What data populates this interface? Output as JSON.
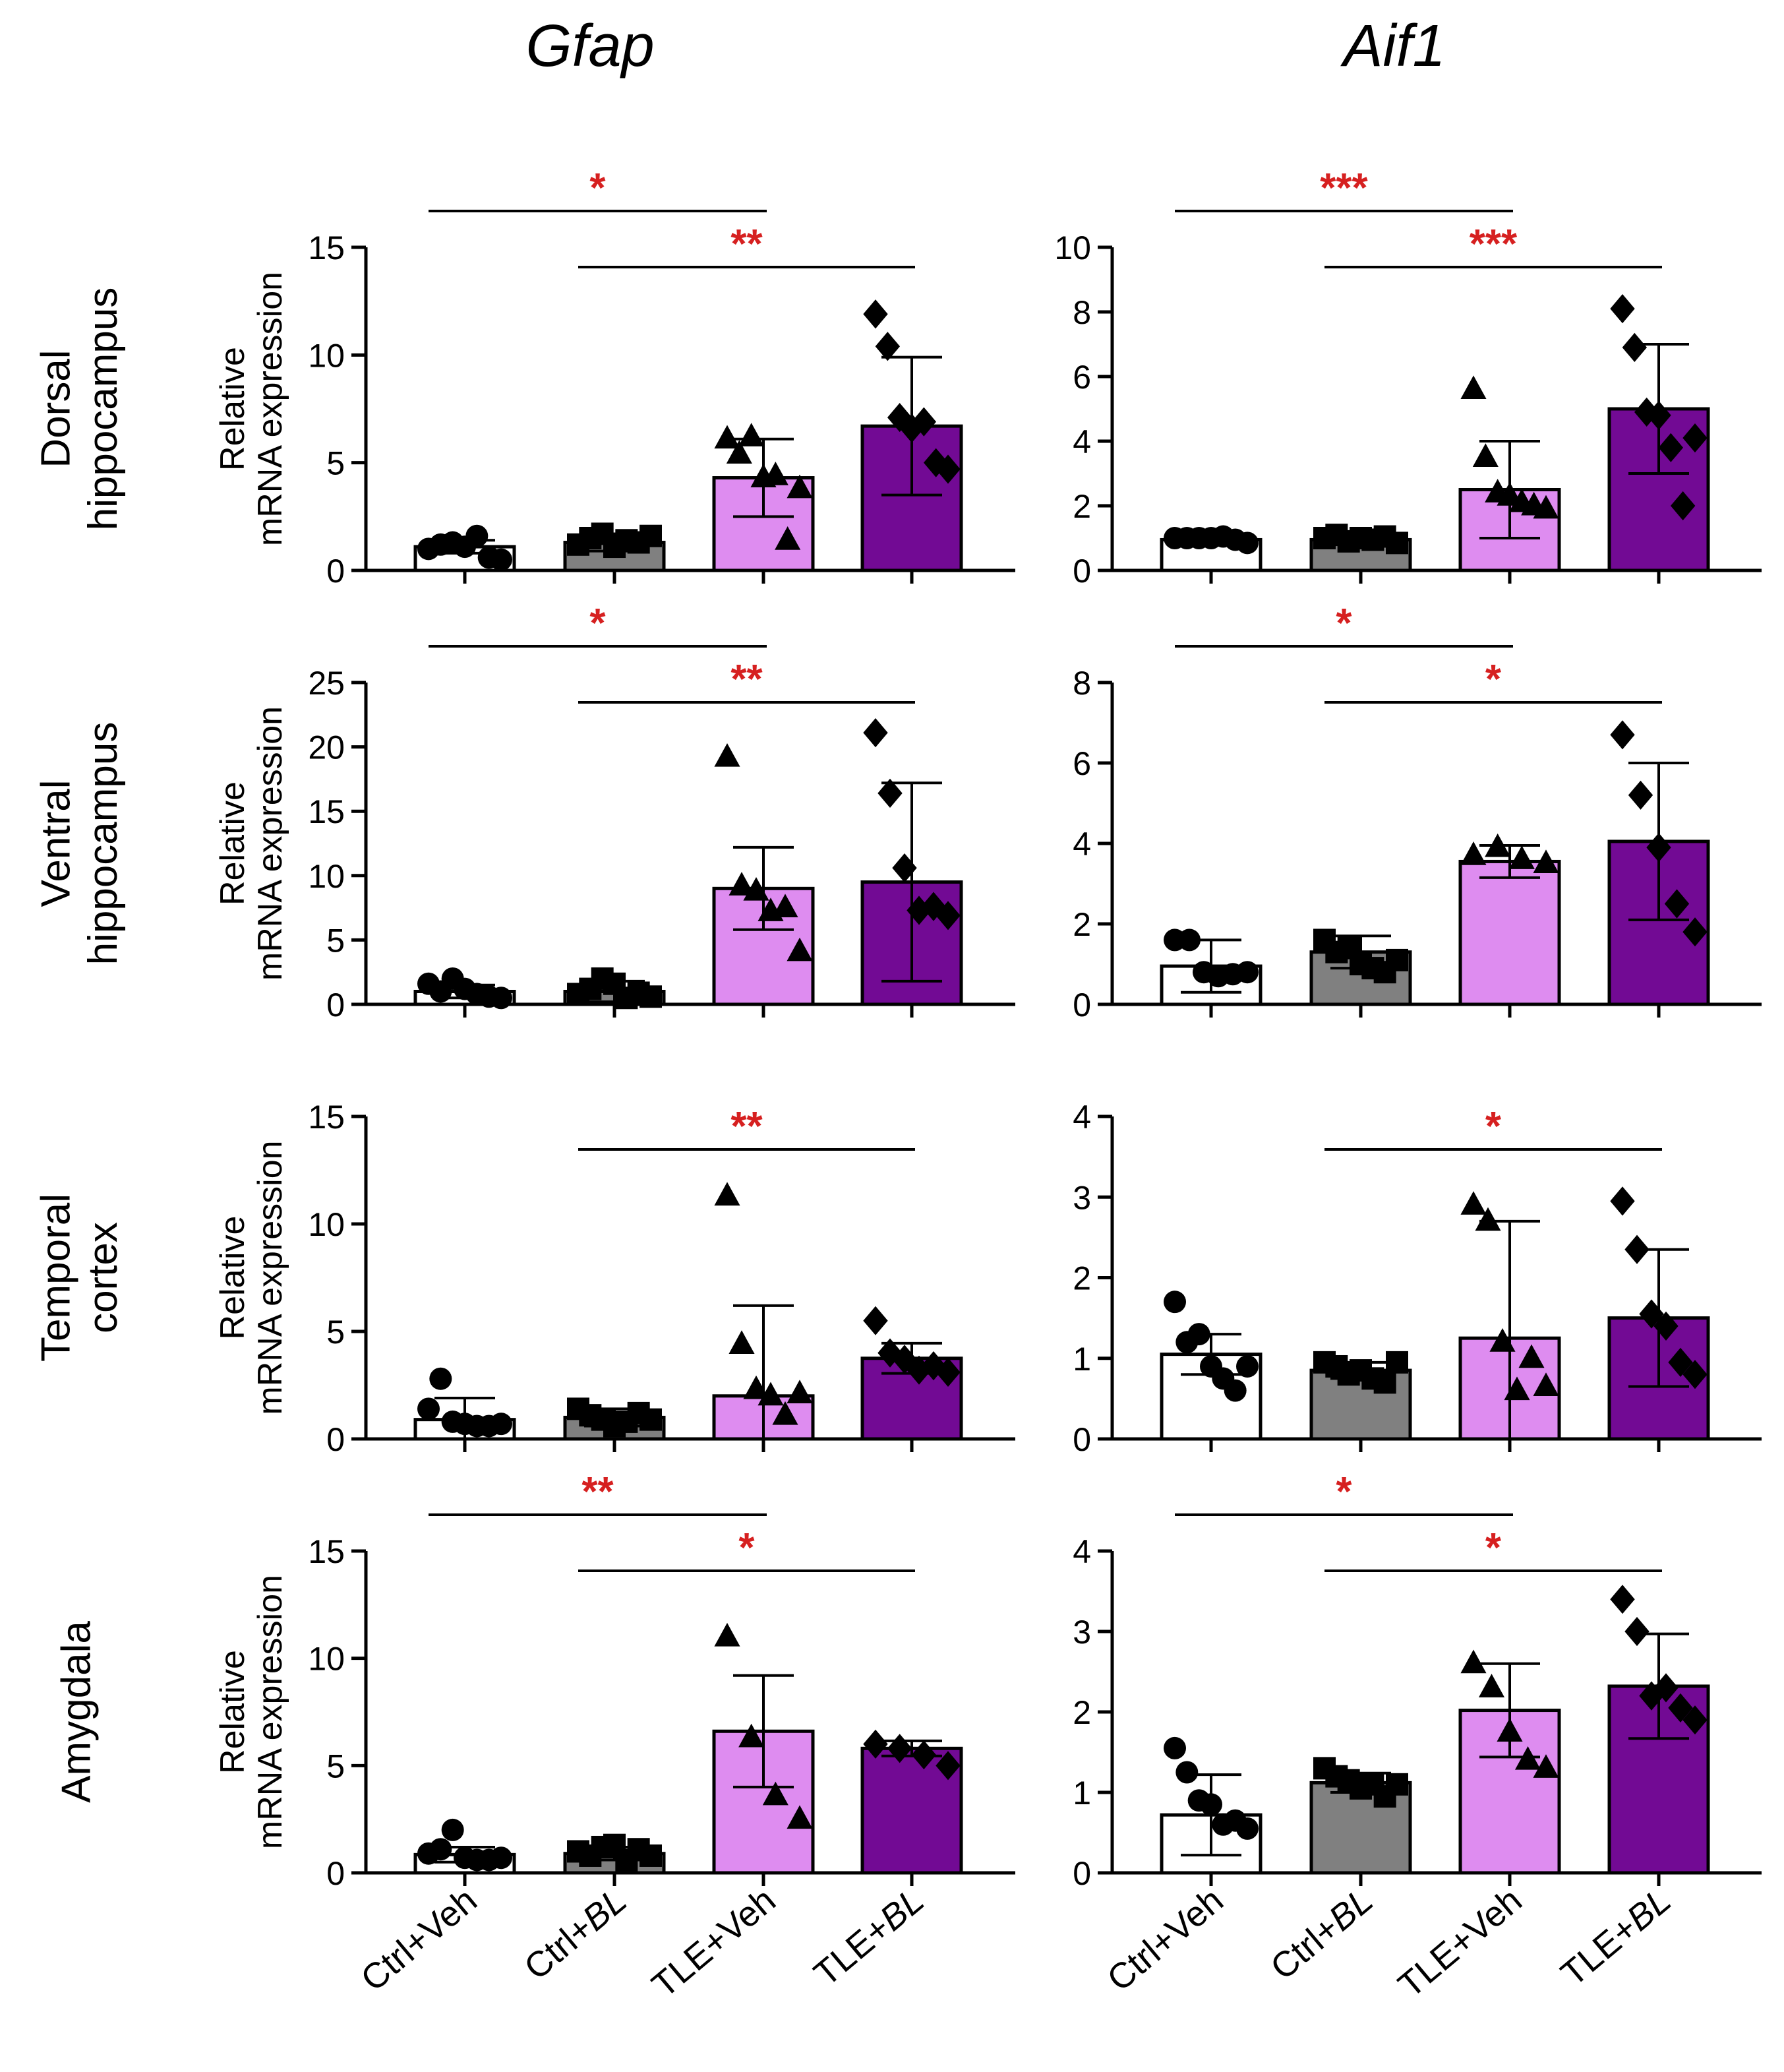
{
  "figure": {
    "columns": [
      {
        "title": "Gfap",
        "plain": "Gfap"
      },
      {
        "title": "Aif1",
        "plain": "Aif1"
      }
    ],
    "rows": [
      {
        "line1": "Dorsal",
        "line2": "hippocampus"
      },
      {
        "line1": "Ventral",
        "line2": "hippocampus"
      },
      {
        "line1": "Temporal",
        "line2": "cortex"
      },
      {
        "line1": "Amygdala",
        "line2": ""
      }
    ],
    "ylabel_line1": "Relative",
    "ylabel_line2": "mRNA expression",
    "groups": [
      {
        "prefix": "Ctrl+",
        "suffix": "Veh",
        "italic_suffix": false,
        "color": "#ffffff",
        "marker": "circle"
      },
      {
        "prefix": "Ctrl+",
        "suffix": "BL",
        "italic_suffix": true,
        "color": "#808080",
        "marker": "square"
      },
      {
        "prefix": "TLE+",
        "suffix": "Veh",
        "italic_suffix": false,
        "color": "#de8cf0",
        "marker": "triangle"
      },
      {
        "prefix": "TLE+",
        "suffix": "BL",
        "italic_suffix": true,
        "color": "#720a94",
        "marker": "diamond"
      }
    ]
  },
  "chart_data": [
    {
      "type": "bar",
      "row": 0,
      "col": 0,
      "title": "Gfap",
      "region": "Dorsal hippocampus",
      "ylabel": "Relative mRNA expression",
      "ylim": [
        0,
        15
      ],
      "yticks": [
        0,
        5,
        10,
        15
      ],
      "categories": [
        "Ctrl+Veh",
        "Ctrl+BL",
        "TLE+Veh",
        "TLE+BL"
      ],
      "values": [
        1.1,
        1.3,
        4.3,
        6.7
      ],
      "errors": [
        0.3,
        0.4,
        1.8,
        3.2
      ],
      "points": [
        [
          1.0,
          1.2,
          1.3,
          1.1,
          1.6,
          0.6,
          0.5
        ],
        [
          1.2,
          1.5,
          1.7,
          1.1,
          1.4,
          1.3,
          1.6
        ],
        [
          6.1,
          5.4,
          6.2,
          4.3,
          4.4,
          1.4,
          3.8
        ],
        [
          11.9,
          10.4,
          7.1,
          6.6,
          6.9,
          5.0,
          4.7
        ]
      ],
      "significance": [
        {
          "from": 0,
          "to": 2,
          "label": "*"
        },
        {
          "from": 1,
          "to": 3,
          "label": "**"
        }
      ]
    },
    {
      "type": "bar",
      "row": 0,
      "col": 1,
      "title": "Aif1",
      "region": "Dorsal hippocampus",
      "ylabel": "",
      "ylim": [
        0,
        10
      ],
      "yticks": [
        0,
        2,
        4,
        6,
        8,
        10
      ],
      "categories": [
        "Ctrl+Veh",
        "Ctrl+BL",
        "TLE+Veh",
        "TLE+BL"
      ],
      "values": [
        0.95,
        0.95,
        2.5,
        5.0
      ],
      "errors": [
        0.08,
        0.15,
        1.5,
        2.0
      ],
      "points": [
        [
          1.0,
          1.0,
          1.0,
          1.0,
          1.05,
          0.95,
          0.85
        ],
        [
          1.0,
          1.1,
          0.9,
          1.0,
          0.95,
          1.05,
          0.85
        ],
        [
          5.6,
          3.5,
          2.4,
          2.3,
          2.1,
          2.0,
          1.9
        ],
        [
          8.1,
          6.9,
          4.9,
          4.8,
          3.8,
          2.0,
          4.1
        ]
      ],
      "significance": [
        {
          "from": 0,
          "to": 2,
          "label": "***"
        },
        {
          "from": 1,
          "to": 3,
          "label": "***"
        }
      ]
    },
    {
      "type": "bar",
      "row": 1,
      "col": 0,
      "title": "Gfap",
      "region": "Ventral hippocampus",
      "ylabel": "Relative mRNA expression",
      "ylim": [
        0,
        25
      ],
      "yticks": [
        0,
        5,
        10,
        15,
        20,
        25
      ],
      "categories": [
        "Ctrl+Veh",
        "Ctrl+BL",
        "TLE+Veh",
        "TLE+BL"
      ],
      "values": [
        1.0,
        1.0,
        9.0,
        9.5
      ],
      "errors": [
        0.5,
        0.8,
        3.2,
        7.7
      ],
      "points": [
        [
          1.6,
          1.0,
          2.0,
          1.2,
          0.8,
          0.6,
          0.5
        ],
        [
          0.8,
          1.2,
          2.0,
          1.6,
          0.5,
          0.9,
          0.6
        ],
        [
          19.2,
          9.2,
          8.8,
          7.2,
          7.5,
          4.1
        ],
        [
          21.1,
          16.4,
          10.6,
          7.3,
          7.6,
          6.9
        ]
      ],
      "significance": [
        {
          "from": 0,
          "to": 2,
          "label": "*"
        },
        {
          "from": 1,
          "to": 3,
          "label": "**"
        }
      ]
    },
    {
      "type": "bar",
      "row": 1,
      "col": 1,
      "title": "Aif1",
      "region": "Ventral hippocampus",
      "ylabel": "",
      "ylim": [
        0,
        8
      ],
      "yticks": [
        0,
        2,
        4,
        6,
        8
      ],
      "categories": [
        "Ctrl+Veh",
        "Ctrl+BL",
        "TLE+Veh",
        "TLE+BL"
      ],
      "values": [
        0.95,
        1.3,
        3.55,
        4.05
      ],
      "errors": [
        0.65,
        0.4,
        0.4,
        1.95
      ],
      "points": [
        [
          1.6,
          1.6,
          0.8,
          0.7,
          0.75,
          0.8
        ],
        [
          1.6,
          1.3,
          1.4,
          1.0,
          0.9,
          0.8,
          1.1
        ],
        [
          3.7,
          3.9,
          3.6,
          3.5
        ],
        [
          6.7,
          5.2,
          3.9,
          2.5,
          1.8
        ]
      ],
      "significance": [
        {
          "from": 0,
          "to": 2,
          "label": "*"
        },
        {
          "from": 1,
          "to": 3,
          "label": "*"
        }
      ]
    },
    {
      "type": "bar",
      "row": 2,
      "col": 0,
      "title": "Gfap",
      "region": "Temporal cortex",
      "ylabel": "Relative mRNA expression",
      "ylim": [
        0,
        15
      ],
      "yticks": [
        0,
        5,
        10,
        15
      ],
      "categories": [
        "Ctrl+Veh",
        "Ctrl+BL",
        "TLE+Veh",
        "TLE+BL"
      ],
      "values": [
        0.9,
        1.0,
        2.0,
        3.75
      ],
      "errors": [
        1.0,
        0.4,
        4.2,
        0.7
      ],
      "points": [
        [
          1.4,
          2.8,
          0.8,
          0.7,
          0.6,
          0.6,
          0.7
        ],
        [
          1.4,
          1.1,
          0.9,
          0.6,
          0.8,
          1.2,
          0.9
        ],
        [
          11.3,
          4.4,
          2.3,
          2.0,
          1.1,
          2.1
        ],
        [
          5.5,
          4.0,
          3.7,
          3.2,
          3.4,
          3.1
        ]
      ],
      "significance": [
        {
          "from": 1,
          "to": 3,
          "label": "**"
        }
      ]
    },
    {
      "type": "bar",
      "row": 2,
      "col": 1,
      "title": "Aif1",
      "region": "Temporal cortex",
      "ylabel": "",
      "ylim": [
        0,
        4
      ],
      "yticks": [
        0,
        1,
        2,
        3,
        4
      ],
      "categories": [
        "Ctrl+Veh",
        "Ctrl+BL",
        "TLE+Veh",
        "TLE+BL"
      ],
      "values": [
        1.05,
        0.85,
        1.25,
        1.5
      ],
      "errors": [
        0.25,
        0.1,
        1.45,
        0.85
      ],
      "points": [
        [
          1.7,
          1.2,
          1.3,
          0.9,
          0.75,
          0.6,
          0.9
        ],
        [
          0.95,
          0.9,
          0.8,
          0.85,
          0.75,
          0.7,
          0.95
        ],
        [
          2.9,
          2.7,
          1.2,
          0.6,
          1.0,
          0.65
        ],
        [
          2.95,
          2.35,
          1.55,
          1.4,
          0.95,
          0.8
        ]
      ],
      "significance": [
        {
          "from": 1,
          "to": 3,
          "label": "*"
        }
      ]
    },
    {
      "type": "bar",
      "row": 3,
      "col": 0,
      "title": "Gfap",
      "region": "Amygdala",
      "ylabel": "Relative mRNA expression",
      "ylim": [
        0,
        15
      ],
      "yticks": [
        0,
        5,
        10,
        15
      ],
      "categories": [
        "Ctrl+Veh",
        "Ctrl+BL",
        "TLE+Veh",
        "TLE+BL"
      ],
      "values": [
        0.85,
        0.9,
        6.6,
        5.8
      ],
      "errors": [
        0.35,
        0.3,
        2.6,
        0.35
      ],
      "points": [
        [
          0.9,
          1.1,
          2.0,
          0.7,
          0.6,
          0.6,
          0.7
        ],
        [
          1.0,
          0.8,
          1.2,
          1.3,
          0.6,
          1.1,
          0.8
        ],
        [
          11.0,
          6.3,
          3.6,
          2.5
        ],
        [
          6.0,
          5.8,
          5.5,
          5.0
        ]
      ],
      "significance": [
        {
          "from": 0,
          "to": 2,
          "label": "**"
        },
        {
          "from": 1,
          "to": 3,
          "label": "*"
        }
      ]
    },
    {
      "type": "bar",
      "row": 3,
      "col": 1,
      "title": "Aif1",
      "region": "Amygdala",
      "ylabel": "",
      "ylim": [
        0,
        4
      ],
      "yticks": [
        0,
        1,
        2,
        3,
        4
      ],
      "categories": [
        "Ctrl+Veh",
        "Ctrl+BL",
        "TLE+Veh",
        "TLE+BL"
      ],
      "values": [
        0.72,
        1.12,
        2.02,
        2.32
      ],
      "errors": [
        0.5,
        0.12,
        0.58,
        0.65
      ],
      "points": [
        [
          1.55,
          1.25,
          0.9,
          0.85,
          0.6,
          0.65,
          0.55
        ],
        [
          1.3,
          1.2,
          1.15,
          1.05,
          1.1,
          0.95,
          1.1
        ],
        [
          2.6,
          2.3,
          1.75,
          1.4,
          1.3
        ],
        [
          3.4,
          3.0,
          2.2,
          2.3,
          2.05,
          1.9
        ]
      ],
      "significance": [
        {
          "from": 0,
          "to": 2,
          "label": "*"
        },
        {
          "from": 1,
          "to": 3,
          "label": "*"
        }
      ]
    }
  ]
}
